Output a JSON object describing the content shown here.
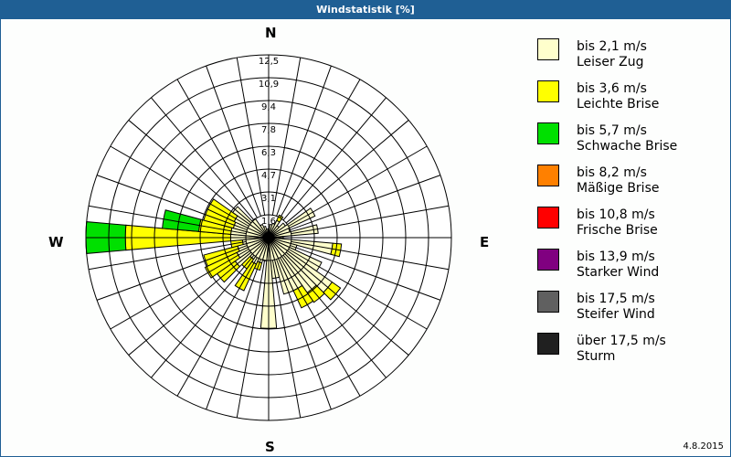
{
  "title": "Windstatistik [%]",
  "date": "4.8.2015",
  "directions": {
    "n": "N",
    "e": "E",
    "s": "S",
    "w": "W"
  },
  "legend": [
    {
      "range": "bis 2,1 m/s",
      "name": "Leiser Zug",
      "color": "#ffffcc"
    },
    {
      "range": "bis 3,6 m/s",
      "name": "Leichte Brise",
      "color": "#ffff00"
    },
    {
      "range": "bis 5,7 m/s",
      "name": "Schwache Brise",
      "color": "#00e000"
    },
    {
      "range": "bis 8,2 m/s",
      "name": "Mäßige Brise",
      "color": "#ff8000"
    },
    {
      "range": "bis 10,8 m/s",
      "name": "Frische Brise",
      "color": "#ff0000"
    },
    {
      "range": "bis 13,9 m/s",
      "name": "Starker Wind",
      "color": "#800080"
    },
    {
      "range": "bis 17,5 m/s",
      "name": "Steifer Wind",
      "color": "#606060"
    },
    {
      "range": "über 17,5 m/s",
      "name": "Sturm",
      "color": "#202020"
    }
  ],
  "chart_data": {
    "type": "wind-rose",
    "title": "Windstatistik [%]",
    "unit": "%",
    "ring_labels": [
      "1,6",
      "3,1",
      "4,7",
      "6,3",
      "7,8",
      "9,4",
      "10,9",
      "12,5"
    ],
    "rmax": 12.5,
    "sector_width_deg": 10,
    "series_names": [
      "Leiser Zug",
      "Leichte Brise",
      "Schwache Brise"
    ],
    "sectors": [
      {
        "bearing": 10,
        "cumulative": [
          0.9
        ]
      },
      {
        "bearing": 20,
        "cumulative": [
          1.0
        ]
      },
      {
        "bearing": 30,
        "cumulative": [
          1.3,
          1.7
        ]
      },
      {
        "bearing": 40,
        "cumulative": [
          1.0
        ]
      },
      {
        "bearing": 50,
        "cumulative": [
          1.4
        ]
      },
      {
        "bearing": 60,
        "cumulative": [
          3.5
        ]
      },
      {
        "bearing": 70,
        "cumulative": [
          1.5
        ]
      },
      {
        "bearing": 80,
        "cumulative": [
          3.4
        ]
      },
      {
        "bearing": 90,
        "cumulative": [
          1.0
        ]
      },
      {
        "bearing": 100,
        "cumulative": [
          4.4,
          5.0
        ]
      },
      {
        "bearing": 110,
        "cumulative": [
          2.0
        ]
      },
      {
        "bearing": 120,
        "cumulative": [
          4.0
        ]
      },
      {
        "bearing": 130,
        "cumulative": [
          5.3,
          6.0
        ]
      },
      {
        "bearing": 140,
        "cumulative": [
          4.6,
          5.4
        ]
      },
      {
        "bearing": 150,
        "cumulative": [
          4.0,
          5.3
        ]
      },
      {
        "bearing": 160,
        "cumulative": [
          4.0
        ]
      },
      {
        "bearing": 170,
        "cumulative": [
          2.8
        ]
      },
      {
        "bearing": 180,
        "cumulative": [
          6.2
        ]
      },
      {
        "bearing": 190,
        "cumulative": [
          1.6
        ]
      },
      {
        "bearing": 200,
        "cumulative": [
          1.8,
          2.3
        ]
      },
      {
        "bearing": 210,
        "cumulative": [
          2.0,
          4.0
        ]
      },
      {
        "bearing": 220,
        "cumulative": [
          1.8,
          2.6
        ]
      },
      {
        "bearing": 230,
        "cumulative": [
          2.8,
          4.3
        ]
      },
      {
        "bearing": 240,
        "cumulative": [
          2.4,
          4.8
        ]
      },
      {
        "bearing": 250,
        "cumulative": [
          2.2,
          4.6
        ]
      },
      {
        "bearing": 260,
        "cumulative": [
          1.8,
          2.6
        ]
      },
      {
        "bearing": 270,
        "cumulative": [
          2.6,
          9.8,
          12.5
        ]
      },
      {
        "bearing": 280,
        "cumulative": [
          2.6,
          4.8,
          7.3
        ]
      },
      {
        "bearing": 290,
        "cumulative": [
          2.5,
          4.6
        ]
      },
      {
        "bearing": 300,
        "cumulative": [
          2.6,
          4.6
        ]
      },
      {
        "bearing": 310,
        "cumulative": [
          3.0
        ]
      },
      {
        "bearing": 320,
        "cumulative": [
          1.6
        ]
      },
      {
        "bearing": 330,
        "cumulative": [
          1.0
        ]
      },
      {
        "bearing": 340,
        "cumulative": [
          0.8
        ]
      },
      {
        "bearing": 350,
        "cumulative": [
          0.6
        ]
      },
      {
        "bearing": 360,
        "cumulative": [
          0.5
        ]
      }
    ]
  }
}
